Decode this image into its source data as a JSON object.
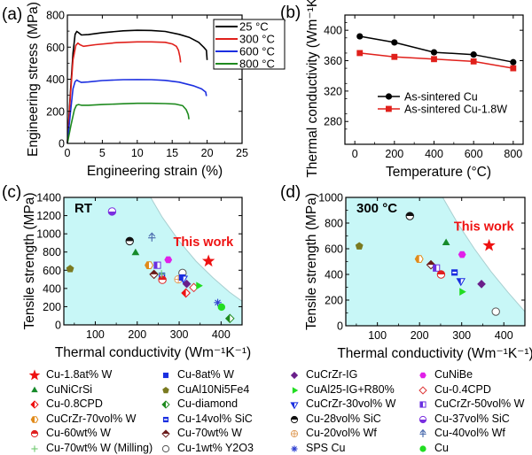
{
  "chart_data": [
    {
      "panel": "(a)",
      "type": "line",
      "xlabel": "Engineering strain (%)",
      "ylabel": "Engineering stress (MPa)",
      "xlim": [
        0,
        25
      ],
      "ylim": [
        0,
        800
      ],
      "xticks": [
        0,
        5,
        10,
        15,
        20,
        25
      ],
      "yticks": [
        0,
        200,
        400,
        600,
        800
      ],
      "legend_position": "top-right",
      "series": [
        {
          "name": "25 °C",
          "color": "#000000",
          "x": [
            0,
            0.4,
            0.8,
            1.1,
            1.35,
            1.6,
            2,
            3,
            5,
            8,
            10,
            12,
            14,
            16,
            17.5,
            18.8,
            19.5,
            19.9,
            20
          ],
          "y": [
            0,
            300,
            560,
            680,
            698,
            690,
            676,
            678,
            690,
            702,
            705,
            704,
            698,
            680,
            660,
            630,
            600,
            580,
            520
          ]
        },
        {
          "name": "300 °C",
          "color": "#e0201b",
          "x": [
            0,
            0.4,
            0.8,
            1.2,
            1.5,
            1.8,
            2.3,
            4,
            7,
            10,
            12,
            14,
            15,
            15.6,
            15.9,
            16.1,
            16.2
          ],
          "y": [
            0,
            280,
            520,
            610,
            625,
            615,
            605,
            615,
            628,
            633,
            633,
            630,
            620,
            605,
            580,
            540,
            505
          ]
        },
        {
          "name": "600 °C",
          "color": "#1c2fe0",
          "x": [
            0,
            0.4,
            0.8,
            1.1,
            1.35,
            1.6,
            2,
            3,
            5,
            8,
            10,
            12,
            14,
            16,
            18,
            19.2,
            19.8,
            19.9
          ],
          "y": [
            0,
            180,
            340,
            385,
            395,
            388,
            380,
            383,
            392,
            397,
            398,
            397,
            393,
            382,
            360,
            340,
            320,
            295
          ]
        },
        {
          "name": "800 °C",
          "color": "#1e8a1e",
          "x": [
            0,
            0.5,
            1,
            1.3,
            1.6,
            2,
            3,
            5,
            8,
            10,
            12,
            14,
            15.5,
            16.5,
            17,
            17.3,
            17.4
          ],
          "y": [
            0,
            110,
            210,
            238,
            242,
            238,
            238,
            242,
            247,
            250,
            250,
            248,
            245,
            235,
            210,
            180,
            150
          ]
        }
      ]
    },
    {
      "panel": "(b)",
      "type": "line",
      "xlabel": "Temperature (°C)",
      "ylabel": "Thermal conductivity (Wm⁻¹K⁻¹)",
      "xlim": [
        -50,
        850
      ],
      "ylim": [
        250,
        420
      ],
      "xticks": [
        0,
        200,
        400,
        600,
        800
      ],
      "yticks": [
        280,
        320,
        360,
        400
      ],
      "legend_position": "center",
      "series": [
        {
          "name": "As-sintered Cu",
          "color": "#000000",
          "marker": "circle",
          "x": [
            25,
            200,
            400,
            600,
            800
          ],
          "y": [
            392,
            384,
            371,
            368,
            358
          ]
        },
        {
          "name": "As-sintered Cu-1.8W",
          "color": "#e0201b",
          "marker": "square",
          "x": [
            25,
            200,
            400,
            600,
            800
          ],
          "y": [
            370,
            365,
            362,
            359,
            350
          ]
        }
      ]
    },
    {
      "panel": "(c)",
      "type": "scatter",
      "annotation": "RT",
      "highlight_label": "This work",
      "xlabel": "Thermal conductivity (Wm⁻¹K⁻¹)",
      "ylabel": "Tensile strength (MPa)",
      "xlim": [
        25,
        450
      ],
      "ylim": [
        0,
        1400
      ],
      "xticks": [
        100,
        200,
        300,
        400
      ],
      "yticks": [
        0,
        200,
        400,
        600,
        800,
        1000,
        1200,
        1400
      ],
      "shaded_region": "below boundary curve",
      "boundary_curve": {
        "x": [
          232,
          260,
          300,
          340,
          380,
          420,
          450
        ],
        "y": [
          1400,
          1180,
          920,
          700,
          520,
          360,
          260
        ]
      },
      "points": [
        {
          "name": "Cu-1.8at% W",
          "x": 370,
          "y": 700
        },
        {
          "name": "Cu-37vol% SiC",
          "x": 140,
          "y": 1245
        },
        {
          "name": "Cu-28vol% SiC",
          "x": 182,
          "y": 920
        },
        {
          "name": "Cu-40vol% Wf",
          "x": 235,
          "y": 960
        },
        {
          "name": "CuNiCrSi",
          "x": 196,
          "y": 790
        },
        {
          "name": "CuNiBe",
          "x": 274,
          "y": 715
        },
        {
          "name": "CuAl10Ni5Fe4",
          "x": 40,
          "y": 615
        },
        {
          "name": "CuCrZr-70vol% W",
          "x": 228,
          "y": 655
        },
        {
          "name": "CuCrZr-50vol% W",
          "x": 248,
          "y": 655
        },
        {
          "name": "Cu-70wt% W",
          "x": 240,
          "y": 555
        },
        {
          "name": "Cu-14vol% SiC",
          "x": 259,
          "y": 540
        },
        {
          "name": "Cu-60wt% W",
          "x": 260,
          "y": 495
        },
        {
          "name": "Cu-70wt% W (Milling)",
          "x": 258,
          "y": 560
        },
        {
          "name": "Cu-1wt% Y2O3",
          "x": 308,
          "y": 570
        },
        {
          "name": "Cu-20vol% Wf",
          "x": 298,
          "y": 500
        },
        {
          "name": "Cu-8at% W",
          "x": 307,
          "y": 520
        },
        {
          "name": "CuCrZr-30vol% W",
          "x": 310,
          "y": 510
        },
        {
          "name": "CuCrZr-IG",
          "x": 318,
          "y": 450
        },
        {
          "name": "Cu-0.8CPD",
          "x": 316,
          "y": 350
        },
        {
          "name": "Cu-0.4CPD",
          "x": 335,
          "y": 410
        },
        {
          "name": "CuAl25-IG+R80%",
          "x": 346,
          "y": 430
        },
        {
          "name": "SPS Cu",
          "x": 392,
          "y": 245
        },
        {
          "name": "Cu",
          "x": 401,
          "y": 195
        },
        {
          "name": "Cu-diamond",
          "x": 421,
          "y": 70
        }
      ]
    },
    {
      "panel": "(d)",
      "type": "scatter",
      "annotation": "300 °C",
      "highlight_label": "This work",
      "xlabel": "Thermal conductivity (Wm⁻¹K⁻¹)",
      "ylabel": "Tensile strength (MPa)",
      "xlim": [
        25,
        450
      ],
      "ylim": [
        0,
        1000
      ],
      "xticks": [
        100,
        200,
        300,
        400
      ],
      "yticks": [
        0,
        200,
        400,
        600,
        800,
        1000
      ],
      "shaded_region": "below boundary curve",
      "boundary_curve": {
        "x": [
          255,
          290,
          330,
          370,
          410,
          450
        ],
        "y": [
          1000,
          800,
          600,
          420,
          260,
          110
        ]
      },
      "points": [
        {
          "name": "Cu-1.8at% W",
          "x": 365,
          "y": 625
        },
        {
          "name": "Cu-28vol% SiC",
          "x": 177,
          "y": 855
        },
        {
          "name": "CuAl10Ni5Fe4",
          "x": 57,
          "y": 620
        },
        {
          "name": "CuNiCrSi",
          "x": 263,
          "y": 645
        },
        {
          "name": "CuNiBe",
          "x": 301,
          "y": 555
        },
        {
          "name": "CuCrZr-70vol% W",
          "x": 199,
          "y": 520
        },
        {
          "name": "Cu-70wt% W",
          "x": 227,
          "y": 475
        },
        {
          "name": "CuCrZr-50vol% W",
          "x": 240,
          "y": 450
        },
        {
          "name": "Cu-60wt% W",
          "x": 251,
          "y": 400
        },
        {
          "name": "Cu-14vol% SiC",
          "x": 283,
          "y": 415
        },
        {
          "name": "CuCrZr-30vol% W",
          "x": 298,
          "y": 350
        },
        {
          "name": "CuAl25-IG+R80%",
          "x": 300,
          "y": 265
        },
        {
          "name": "CuCrZr-IG",
          "x": 347,
          "y": 325
        },
        {
          "name": "Cu-1wt% Y2O3",
          "x": 381,
          "y": 110
        }
      ]
    }
  ],
  "panel_labels": {
    "a": "(a)",
    "b": "(b)",
    "c": "(c)",
    "d": "(d)"
  },
  "legend": [
    {
      "label": "Cu-1.8at% W",
      "marker": "star",
      "color": "#ee1111"
    },
    {
      "label": "Cu-8at% W",
      "marker": "square",
      "color": "#1a2fe0"
    },
    {
      "label": "CuCrZr-IG",
      "marker": "diamond",
      "color": "#6a1f8a"
    },
    {
      "label": "CuNiBe",
      "marker": "hexagon",
      "color": "#e020e8"
    },
    {
      "label": "CuNiCrSi",
      "marker": "triangle",
      "color": "#168a2a"
    },
    {
      "label": "CuAl10Ni5Fe4",
      "marker": "pentagon",
      "color": "#7a7a20"
    },
    {
      "label": "CuAl25-IG+R80%",
      "marker": "triangle-right",
      "color": "#22dd22"
    },
    {
      "label": "Cu-0.4CPD",
      "marker": "diamond-open",
      "color": "#dd3333"
    },
    {
      "label": "Cu-0.8CPD",
      "marker": "diamond-half",
      "color": "#ee1111"
    },
    {
      "label": "Cu-diamond",
      "marker": "diamond-half",
      "color": "#1e8a1e"
    },
    {
      "label": "CuCrZr-30vol% W",
      "marker": "triangle-down-half",
      "color": "#1a2fe0"
    },
    {
      "label": "CuCrZr-50vol% W",
      "marker": "square-half",
      "color": "#6a2fe0"
    },
    {
      "label": "CuCrZr-70vol% W",
      "marker": "hexagon-half",
      "color": "#e08a1a"
    },
    {
      "label": "Cu-14vol% SiC",
      "marker": "square-hbar",
      "color": "#1a2fe0"
    },
    {
      "label": "Cu-28vol% SiC",
      "marker": "circle-top",
      "color": "#111111"
    },
    {
      "label": "Cu-37vol% SiC",
      "marker": "circle-bottom",
      "color": "#7a2fe0"
    },
    {
      "label": "Cu-60wt% W",
      "marker": "circle-top",
      "color": "#e02020"
    },
    {
      "label": "Cu-70wt% W",
      "marker": "diamond-top",
      "color": "#6a1a1a"
    },
    {
      "label": "Cu-20vol% Wf",
      "marker": "circle-plus",
      "color": "#e0a060"
    },
    {
      "label": "Cu-40vol% Wf",
      "marker": "asterisk-up",
      "color": "#5070b0"
    },
    {
      "label": "Cu-70wt% W (Milling)",
      "marker": "plus",
      "color": "#77cc77"
    },
    {
      "label": "Cu-1wt% Y2O3",
      "marker": "circle-open",
      "color": "#555555"
    },
    {
      "label": "SPS Cu",
      "marker": "asterisk",
      "color": "#3040d0"
    },
    {
      "label": "Cu",
      "marker": "circle",
      "color": "#22dd22"
    }
  ]
}
